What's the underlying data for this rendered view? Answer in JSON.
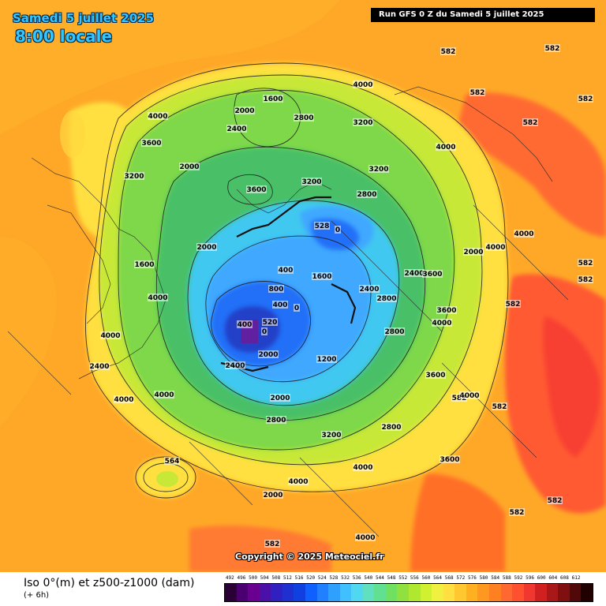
{
  "header": {
    "date": "Samedi 5 juillet 2025",
    "local_time": "8:00 locale",
    "run": "Run GFS 0 Z du Samedi 5 juillet 2025"
  },
  "copyright": "Copyright © 2025 Meteociel.fr",
  "legend": {
    "title": "Iso 0°(m) et z500-z1000 (dam)",
    "subtitle": "(+ 6h)",
    "ticks": [
      "492",
      "496",
      "500",
      "504",
      "508",
      "512",
      "516",
      "520",
      "524",
      "528",
      "532",
      "536",
      "540",
      "544",
      "548",
      "552",
      "556",
      "560",
      "564",
      "568",
      "572",
      "576",
      "580",
      "584",
      "588",
      "592",
      "596",
      "600",
      "604",
      "608",
      "612"
    ],
    "colors": [
      "#2b0036",
      "#4a0070",
      "#6a0090",
      "#4a10a8",
      "#3020c0",
      "#2030d0",
      "#1040e0",
      "#1060ff",
      "#2080ff",
      "#30a0ff",
      "#40c0ff",
      "#50d8f0",
      "#60e0c0",
      "#60e090",
      "#70e060",
      "#90e040",
      "#b0e830",
      "#d0f030",
      "#f0f040",
      "#ffe040",
      "#ffc830",
      "#ffb020",
      "#ff9820",
      "#ff8020",
      "#ff6830",
      "#ff5030",
      "#f03830",
      "#d02020",
      "#a81818",
      "#801010",
      "#500808",
      "#200000"
    ]
  },
  "map": {
    "colors": {
      "ocean_warm": "#ffa020",
      "warm_orange": "#ff8a20",
      "hot_red": "#ff5a30",
      "yellow": "#ffe040",
      "light_yellow": "#f4f060",
      "yellow_green": "#c8e838",
      "green": "#7ed848",
      "dark_green": "#48c068",
      "cyan": "#40c8f0",
      "light_blue": "#40a8ff",
      "blue": "#2070f8",
      "dark_blue": "#2040c8",
      "purple": "#6020a0"
    },
    "labels": [
      {
        "text": "4000"
      },
      {
        "text": "1600"
      },
      {
        "text": "2000"
      },
      {
        "text": "2800"
      },
      {
        "text": "3200"
      },
      {
        "text": "582"
      },
      {
        "text": "582"
      },
      {
        "text": "582"
      },
      {
        "text": "582"
      },
      {
        "text": "582"
      },
      {
        "text": "4000"
      },
      {
        "text": "3600"
      },
      {
        "text": "3200"
      },
      {
        "text": "2000"
      },
      {
        "text": "2400"
      },
      {
        "text": "3600"
      },
      {
        "text": "2800"
      },
      {
        "text": "3200"
      },
      {
        "text": "528"
      },
      {
        "text": "0"
      },
      {
        "text": "4000"
      },
      {
        "text": "4000"
      },
      {
        "text": "4000"
      },
      {
        "text": "582"
      },
      {
        "text": "582"
      },
      {
        "text": "1600"
      },
      {
        "text": "2000"
      },
      {
        "text": "800"
      },
      {
        "text": "400"
      },
      {
        "text": "0"
      },
      {
        "text": "1600"
      },
      {
        "text": "400"
      },
      {
        "text": "4000"
      },
      {
        "text": "2400"
      },
      {
        "text": "2800"
      },
      {
        "text": "4000"
      },
      {
        "text": "2800"
      },
      {
        "text": "400"
      },
      {
        "text": "0"
      },
      {
        "text": "520"
      },
      {
        "text": "2400"
      },
      {
        "text": "2000"
      },
      {
        "text": "1200"
      },
      {
        "text": "2800"
      },
      {
        "text": "3200"
      },
      {
        "text": "3600"
      },
      {
        "text": "582"
      },
      {
        "text": "582"
      },
      {
        "text": "4000"
      },
      {
        "text": "4000"
      },
      {
        "text": "2000"
      },
      {
        "text": "2800"
      },
      {
        "text": "3200"
      },
      {
        "text": "2400"
      },
      {
        "text": "4000"
      },
      {
        "text": "564"
      },
      {
        "text": "4000"
      },
      {
        "text": "4000"
      },
      {
        "text": "582"
      },
      {
        "text": "582"
      },
      {
        "text": "582"
      },
      {
        "text": "3600"
      },
      {
        "text": "4000"
      },
      {
        "text": "2000"
      },
      {
        "text": "2400"
      },
      {
        "text": "2000"
      },
      {
        "text": "3600"
      },
      {
        "text": "3600"
      },
      {
        "text": "582"
      },
      {
        "text": "4000"
      }
    ]
  }
}
